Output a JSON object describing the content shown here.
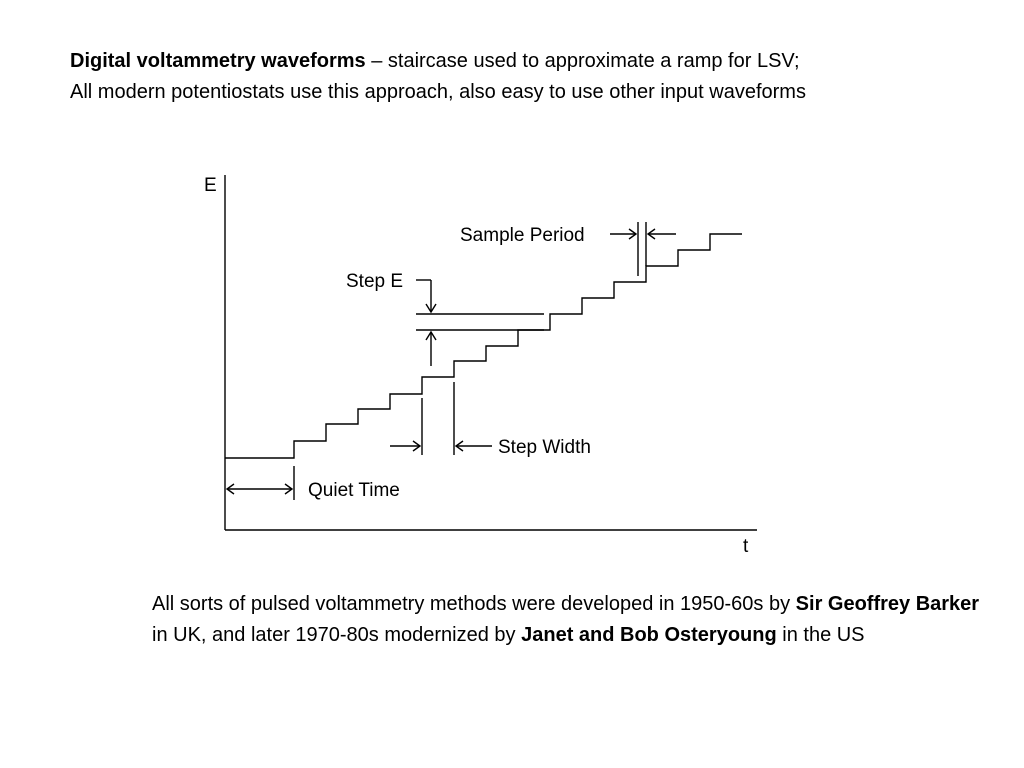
{
  "top": {
    "line1_bold": "Digital voltammetry waveforms",
    "line1_rest": " – staircase used to approximate a ramp for LSV;",
    "line2": "All modern potentiostats use this approach, also easy to use other input waveforms"
  },
  "diagram": {
    "y_axis_label": "E",
    "x_axis_label": "t",
    "labels": {
      "sample_period": "Sample Period",
      "step_e": "Step E",
      "step_width": "Step Width",
      "quiet_time": "Quiet Time"
    }
  },
  "bottom": {
    "p1": "All sorts of pulsed voltammetry methods were developed in 1950-60s by ",
    "name1": "Sir Geoffrey Barker",
    "p2": " in UK, and later 1970-80s modernized by ",
    "name2": "Janet and Bob Osteryoung",
    "p3": " in the US"
  }
}
